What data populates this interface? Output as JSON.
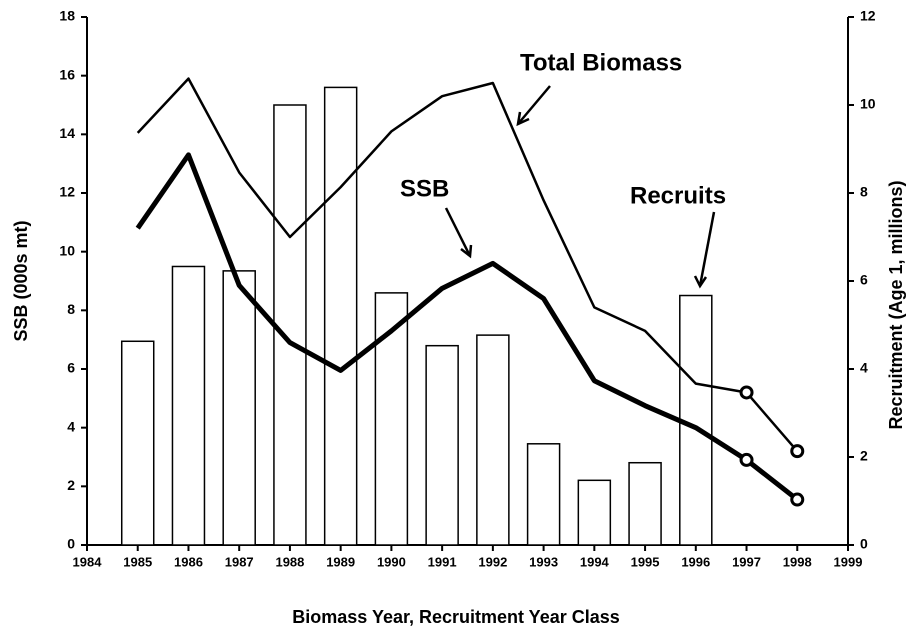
{
  "chart_data": {
    "type": "bar-line",
    "x_label": "Biomass Year, Recruitment Year Class",
    "y_label": "SSB (000s mt)",
    "y2_label": "Recruitment (Age 1, millions)",
    "x": [
      1985,
      1986,
      1987,
      1988,
      1989,
      1990,
      1991,
      1992,
      1993,
      1994,
      1995,
      1996,
      1997,
      1998
    ],
    "xlim": [
      1984,
      1999
    ],
    "xticks": [
      1984,
      1985,
      1986,
      1987,
      1988,
      1989,
      1990,
      1991,
      1992,
      1993,
      1994,
      1995,
      1996,
      1997,
      1998,
      1999
    ],
    "ylim": [
      0,
      18
    ],
    "yticks": [
      0,
      2,
      4,
      6,
      8,
      10,
      12,
      14,
      16,
      18
    ],
    "y2lim": [
      0,
      12
    ],
    "y2ticks": [
      0,
      2,
      4,
      6,
      8,
      10,
      12
    ],
    "series": [
      {
        "name": "Recruits",
        "type": "bar",
        "axis": "y2",
        "color": "#000000",
        "fill": "#ffffff",
        "values": [
          4.63,
          6.33,
          6.23,
          10.0,
          10.4,
          5.73,
          4.53,
          4.77,
          2.3,
          1.47,
          1.87,
          5.67,
          null,
          null
        ]
      },
      {
        "name": "Total Biomass",
        "type": "line",
        "color": "#000000",
        "values": [
          14.05,
          15.9,
          12.7,
          10.5,
          12.2,
          14.1,
          15.3,
          15.75,
          11.75,
          8.1,
          7.3,
          5.5,
          5.2,
          3.2
        ]
      },
      {
        "name": "SSB",
        "type": "line",
        "color": "#000000",
        "values": [
          10.8,
          13.3,
          8.85,
          6.9,
          5.95,
          7.3,
          8.75,
          9.6,
          8.4,
          5.6,
          4.75,
          4.0,
          2.9,
          1.55
        ]
      }
    ]
  }
}
